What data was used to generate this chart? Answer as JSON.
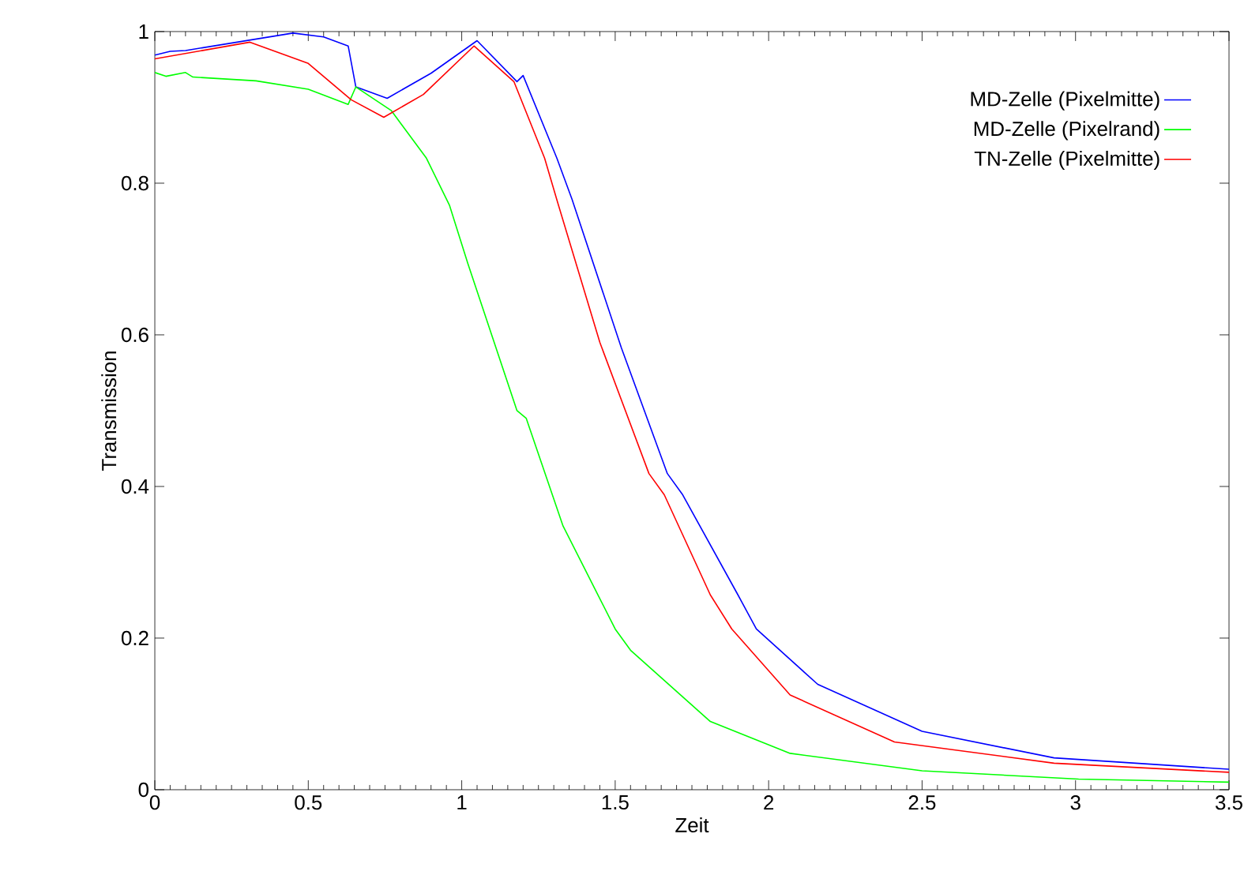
{
  "chart_data": {
    "type": "line",
    "xlabel": "Zeit",
    "ylabel": "Transmission",
    "xlim": [
      0,
      3.5
    ],
    "ylim": [
      0,
      1
    ],
    "xticks": [
      0,
      0.5,
      1,
      1.5,
      2,
      2.5,
      3,
      3.5
    ],
    "yticks": [
      0,
      0.2,
      0.4,
      0.6,
      0.8,
      1
    ],
    "grid": false,
    "legend": "top right",
    "marker": "none",
    "line_style": "solid",
    "series": [
      {
        "name": "MD-Zelle (Pixelmitte)",
        "color": "#0000ff",
        "x": [
          0,
          0.05,
          0.1,
          0.45,
          0.55,
          0.63,
          0.655,
          0.757,
          0.9,
          1.05,
          1.18,
          1.2,
          1.31,
          1.36,
          1.52,
          1.67,
          1.72,
          1.9,
          1.96,
          2.16,
          2.5,
          2.93,
          3.5
        ],
        "values": [
          0.969,
          0.974,
          0.975,
          0.998,
          0.993,
          0.981,
          0.927,
          0.912,
          0.945,
          0.988,
          0.934,
          0.942,
          0.833,
          0.778,
          0.583,
          0.417,
          0.389,
          0.257,
          0.212,
          0.139,
          0.077,
          0.042,
          0.027
        ]
      },
      {
        "name": "MD-Zelle (Pixelrand)",
        "color": "#00ff00",
        "x": [
          0,
          0.036,
          0.1,
          0.124,
          0.33,
          0.5,
          0.63,
          0.655,
          0.77,
          0.885,
          0.96,
          1.02,
          1.18,
          1.21,
          1.33,
          1.5,
          1.55,
          1.81,
          2.07,
          2.5,
          3.01,
          3.5
        ],
        "values": [
          0.946,
          0.941,
          0.946,
          0.94,
          0.935,
          0.924,
          0.904,
          0.927,
          0.896,
          0.833,
          0.771,
          0.694,
          0.5,
          0.49,
          0.348,
          0.212,
          0.184,
          0.09,
          0.048,
          0.025,
          0.014,
          0.01
        ]
      },
      {
        "name": "TN-Zelle (Pixelmitte)",
        "color": "#ff0000",
        "x": [
          0,
          0.31,
          0.5,
          0.64,
          0.746,
          0.875,
          1.04,
          1.17,
          1.27,
          1.31,
          1.45,
          1.61,
          1.66,
          1.81,
          1.88,
          2.07,
          2.41,
          2.93,
          3.5
        ],
        "values": [
          0.964,
          0.986,
          0.958,
          0.91,
          0.887,
          0.917,
          0.981,
          0.934,
          0.833,
          0.778,
          0.59,
          0.417,
          0.389,
          0.257,
          0.212,
          0.125,
          0.063,
          0.035,
          0.023
        ]
      }
    ]
  }
}
